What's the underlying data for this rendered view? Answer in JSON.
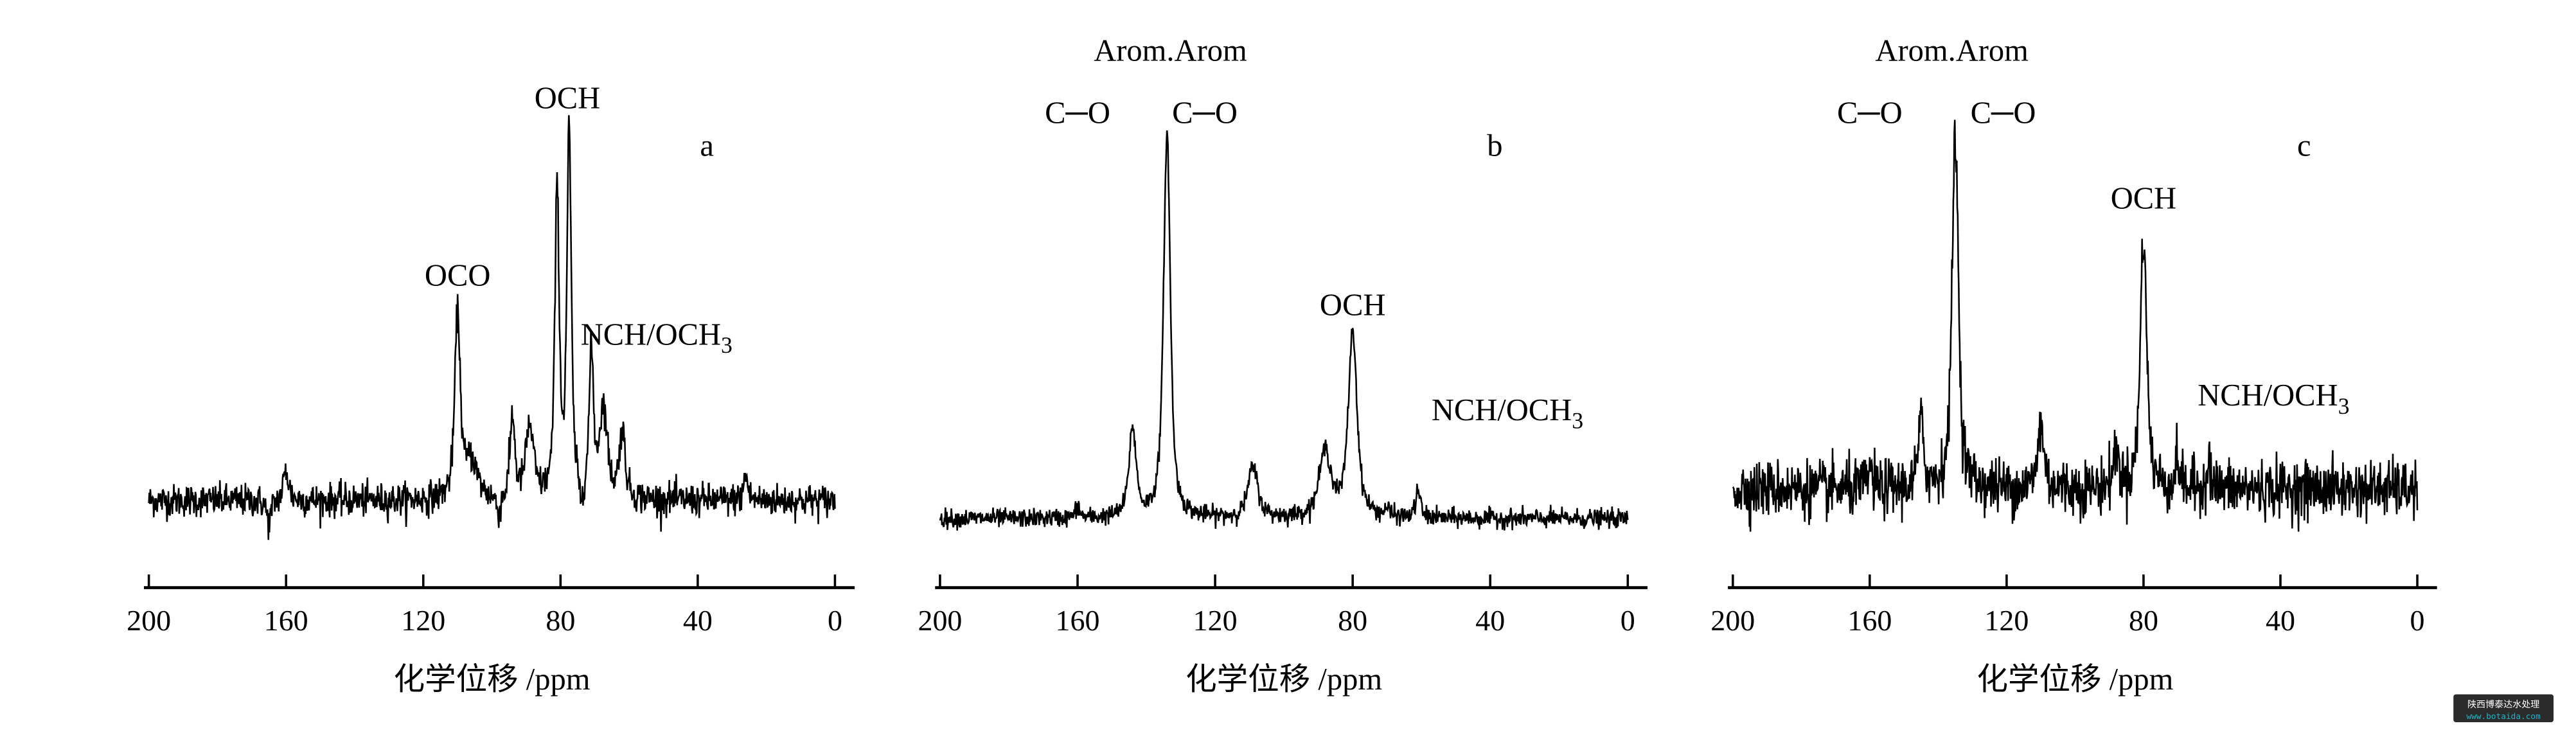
{
  "chart_data": [
    {
      "type": "line",
      "panel_label": "a",
      "xlabel": "化学位移 /ppm",
      "xlim": [
        200,
        0
      ],
      "x_reversed": true,
      "xticks": [
        200,
        160,
        120,
        80,
        40,
        0
      ],
      "grid": false,
      "y_axis_shown": false,
      "noise": 0.022,
      "peaks": [
        {
          "ppm": 165,
          "height": -0.06,
          "width": 1.2
        },
        {
          "ppm": 160,
          "height": 0.08,
          "width": 1.4
        },
        {
          "ppm": 110,
          "height": 0.5,
          "width": 1.4
        },
        {
          "ppm": 106,
          "height": 0.1,
          "width": 3
        },
        {
          "ppm": 98,
          "height": -0.05,
          "width": 1.2
        },
        {
          "ppm": 94,
          "height": 0.22,
          "width": 1.2
        },
        {
          "ppm": 89,
          "height": 0.19,
          "width": 2
        },
        {
          "ppm": 81,
          "height": 0.82,
          "width": 1.1
        },
        {
          "ppm": 77.5,
          "height": 0.98,
          "width": 1.1
        },
        {
          "ppm": 74,
          "height": -0.06,
          "width": 1
        },
        {
          "ppm": 71,
          "height": 0.38,
          "width": 1.1
        },
        {
          "ppm": 67.5,
          "height": 0.24,
          "width": 2
        },
        {
          "ppm": 62,
          "height": 0.18,
          "width": 1.5
        },
        {
          "ppm": 26,
          "height": 0.07,
          "width": 1
        }
      ],
      "annotations": [
        {
          "text": "OCH",
          "sub": "",
          "ppm": 78
        },
        {
          "text": "OCO",
          "sub": "",
          "ppm": 110
        },
        {
          "text": "NCH/OCH",
          "sub": "3",
          "ppm": 52
        }
      ]
    },
    {
      "type": "line",
      "panel_label": "b",
      "xlabel": "化学位移 /ppm",
      "xlim": [
        200,
        0
      ],
      "x_reversed": true,
      "xticks": [
        200,
        160,
        120,
        80,
        40,
        0
      ],
      "grid": false,
      "y_axis_shown": false,
      "noise": 0.012,
      "peaks": [
        {
          "ppm": 160,
          "height": 0.03,
          "width": 1
        },
        {
          "ppm": 144,
          "height": 0.23,
          "width": 1.8
        },
        {
          "ppm": 134,
          "height": 1.0,
          "width": 1.7
        },
        {
          "ppm": 109,
          "height": 0.13,
          "width": 2.5
        },
        {
          "ppm": 88,
          "height": 0.17,
          "width": 3
        },
        {
          "ppm": 80,
          "height": 0.48,
          "width": 2.2
        },
        {
          "ppm": 70,
          "height": 0.02,
          "width": 1
        },
        {
          "ppm": 61,
          "height": 0.07,
          "width": 1.2
        }
      ],
      "annotations": [
        {
          "text": "Arom.Arom",
          "sub": "",
          "ppm": 133
        },
        {
          "text": "C─O",
          "sub": "",
          "ppm": 160
        },
        {
          "text": "C─O",
          "sub": "",
          "ppm": 123
        },
        {
          "text": "OCH",
          "sub": "",
          "ppm": 80
        },
        {
          "text": "NCH/OCH",
          "sub": "3",
          "ppm": 35
        }
      ]
    },
    {
      "type": "line",
      "panel_label": "c",
      "xlabel": "化学位移 /ppm",
      "xlim": [
        200,
        0
      ],
      "x_reversed": true,
      "xticks": [
        200,
        160,
        120,
        80,
        40,
        0
      ],
      "grid": false,
      "y_axis_shown": false,
      "noise": 0.04,
      "peaks": [
        {
          "ppm": 160,
          "height": 0.06,
          "width": 1
        },
        {
          "ppm": 145,
          "height": 0.18,
          "width": 1.4
        },
        {
          "ppm": 135,
          "height": 1.0,
          "width": 1.6
        },
        {
          "ppm": 110,
          "height": 0.18,
          "width": 1.6
        },
        {
          "ppm": 88,
          "height": 0.1,
          "width": 1.4
        },
        {
          "ppm": 80,
          "height": 0.72,
          "width": 1.6
        },
        {
          "ppm": 70,
          "height": 0.08,
          "width": 1
        },
        {
          "ppm": 61,
          "height": 0.08,
          "width": 1
        }
      ],
      "annotations": [
        {
          "text": "Arom.Arom",
          "sub": "",
          "ppm": 136
        },
        {
          "text": "C─O",
          "sub": "",
          "ppm": 160
        },
        {
          "text": "C─O",
          "sub": "",
          "ppm": 121
        },
        {
          "text": "OCH",
          "sub": "",
          "ppm": 80
        },
        {
          "text": "NCH/OCH",
          "sub": "3",
          "ppm": 42
        }
      ]
    }
  ],
  "watermark": {
    "name": "陕西博泰达水处理",
    "url": "www.botaida.com",
    "bg_color": "#2b2b2b",
    "url_color": "#19b6c8"
  }
}
